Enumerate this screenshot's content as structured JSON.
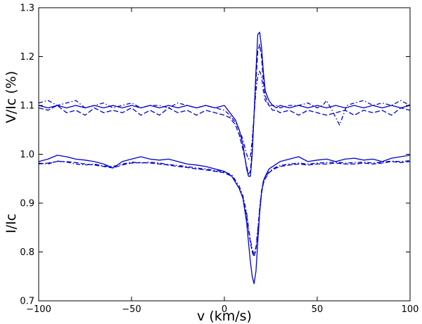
{
  "chart_data": {
    "type": "line",
    "xlabel": "v (km/s)",
    "ylabel_top": "V/Ic (%)",
    "ylabel_bottom": "I/Ic",
    "xlim": [
      -100,
      100
    ],
    "ylim": [
      0.7,
      1.3
    ],
    "x_ticks": [
      -100,
      -50,
      0,
      50,
      100
    ],
    "x_tick_labels": [
      "−100",
      "−50",
      "0",
      "50",
      "100"
    ],
    "y_ticks": [
      0.7,
      0.8,
      0.9,
      1.0,
      1.1,
      1.2,
      1.3
    ],
    "y_tick_labels": [
      "0.7",
      "0.8",
      "0.9",
      "1.0",
      "1.1",
      "1.2",
      "1.3"
    ],
    "grid": false,
    "line_color": "#0000cc",
    "series": [
      {
        "group": "stokes-V",
        "style": "solid",
        "x": [
          -100,
          -95,
          -90,
          -85,
          -80,
          -75,
          -70,
          -65,
          -60,
          -55,
          -50,
          -45,
          -40,
          -35,
          -30,
          -25,
          -20,
          -15,
          -10,
          -5,
          0,
          3,
          6,
          8,
          10,
          12,
          13,
          14,
          15,
          16,
          17,
          18,
          19,
          20,
          21,
          22,
          24,
          26,
          28,
          30,
          35,
          40,
          45,
          50,
          55,
          60,
          65,
          70,
          75,
          80,
          85,
          90,
          95,
          100
        ],
        "y": [
          1.1,
          1.095,
          1.1,
          1.095,
          1.1,
          1.095,
          1.1,
          1.095,
          1.1,
          1.095,
          1.1,
          1.095,
          1.1,
          1.095,
          1.1,
          1.095,
          1.1,
          1.095,
          1.1,
          1.095,
          1.1,
          1.085,
          1.07,
          1.05,
          1.02,
          0.97,
          0.955,
          0.955,
          1.0,
          1.08,
          1.17,
          1.245,
          1.25,
          1.22,
          1.17,
          1.13,
          1.11,
          1.1,
          1.095,
          1.1,
          1.095,
          1.1,
          1.095,
          1.1,
          1.095,
          1.1,
          1.095,
          1.1,
          1.095,
          1.1,
          1.095,
          1.1,
          1.095,
          1.1
        ]
      },
      {
        "group": "stokes-V",
        "style": "dashed",
        "x": [
          -100,
          -95,
          -90,
          -85,
          -80,
          -75,
          -70,
          -65,
          -60,
          -55,
          -50,
          -45,
          -40,
          -35,
          -30,
          -25,
          -20,
          -15,
          -10,
          -5,
          0,
          3,
          6,
          8,
          10,
          12,
          13,
          14,
          15,
          16,
          17,
          18,
          19,
          20,
          21,
          22,
          24,
          26,
          28,
          30,
          35,
          40,
          45,
          50,
          55,
          60,
          65,
          70,
          75,
          80,
          85,
          90,
          95,
          100
        ],
        "y": [
          1.095,
          1.09,
          1.1,
          1.085,
          1.09,
          1.08,
          1.095,
          1.085,
          1.09,
          1.085,
          1.095,
          1.08,
          1.09,
          1.08,
          1.095,
          1.085,
          1.09,
          1.08,
          1.09,
          1.085,
          1.08,
          1.075,
          1.06,
          1.04,
          1.01,
          0.975,
          0.96,
          0.965,
          1.01,
          1.08,
          1.15,
          1.21,
          1.225,
          1.2,
          1.15,
          1.12,
          1.1,
          1.09,
          1.09,
          1.085,
          1.09,
          1.08,
          1.09,
          1.085,
          1.08,
          1.085,
          1.09,
          1.08,
          1.09,
          1.085,
          1.09,
          1.08,
          1.095,
          1.09
        ]
      },
      {
        "group": "stokes-V",
        "style": "dashdot",
        "x": [
          -100,
          -95,
          -90,
          -85,
          -80,
          -75,
          -70,
          -65,
          -60,
          -55,
          -50,
          -45,
          -40,
          -35,
          -30,
          -25,
          -20,
          -15,
          -10,
          -5,
          0,
          3,
          6,
          8,
          10,
          12,
          13,
          14,
          15,
          16,
          17,
          18,
          19,
          20,
          21,
          22,
          24,
          26,
          28,
          30,
          35,
          40,
          45,
          50,
          53,
          55,
          58,
          60,
          62,
          64,
          66,
          70,
          75,
          80,
          85,
          90,
          95,
          100
        ],
        "y": [
          1.105,
          1.11,
          1.1,
          1.105,
          1.11,
          1.095,
          1.1,
          1.105,
          1.095,
          1.1,
          1.105,
          1.095,
          1.1,
          1.1,
          1.095,
          1.105,
          1.1,
          1.095,
          1.1,
          1.095,
          1.09,
          1.08,
          1.065,
          1.05,
          1.03,
          1.0,
          0.99,
          0.995,
          1.03,
          1.08,
          1.13,
          1.16,
          1.17,
          1.16,
          1.13,
          1.11,
          1.1,
          1.1,
          1.1,
          1.095,
          1.1,
          1.1,
          1.105,
          1.095,
          1.1,
          1.11,
          1.09,
          1.075,
          1.06,
          1.08,
          1.1,
          1.105,
          1.11,
          1.1,
          1.105,
          1.1,
          1.11,
          1.1
        ]
      },
      {
        "group": "stokes-I",
        "style": "solid",
        "x": [
          -100,
          -95,
          -90,
          -85,
          -80,
          -75,
          -70,
          -65,
          -60,
          -55,
          -50,
          -45,
          -40,
          -35,
          -30,
          -25,
          -20,
          -15,
          -10,
          -5,
          0,
          4,
          8,
          10,
          12,
          13,
          14,
          15,
          16,
          17,
          18,
          19,
          20,
          21,
          22,
          24,
          26,
          28,
          30,
          35,
          40,
          45,
          50,
          55,
          60,
          65,
          70,
          75,
          80,
          85,
          90,
          95,
          100
        ],
        "y": [
          0.985,
          0.99,
          0.998,
          0.995,
          0.99,
          0.988,
          0.985,
          0.98,
          0.972,
          0.985,
          0.99,
          0.995,
          0.99,
          0.988,
          0.99,
          0.985,
          0.98,
          0.978,
          0.975,
          0.97,
          0.965,
          0.955,
          0.93,
          0.91,
          0.86,
          0.82,
          0.78,
          0.75,
          0.735,
          0.76,
          0.82,
          0.88,
          0.92,
          0.945,
          0.955,
          0.97,
          0.975,
          0.98,
          0.985,
          0.99,
          0.995,
          0.985,
          0.988,
          0.99,
          0.985,
          0.99,
          0.992,
          0.988,
          0.99,
          0.985,
          0.992,
          0.995,
          0.998
        ]
      },
      {
        "group": "stokes-I",
        "style": "dashed",
        "x": [
          -100,
          -95,
          -90,
          -85,
          -80,
          -75,
          -70,
          -65,
          -60,
          -55,
          -50,
          -45,
          -40,
          -35,
          -30,
          -25,
          -20,
          -15,
          -10,
          -5,
          0,
          4,
          8,
          10,
          12,
          13,
          14,
          15,
          16,
          17,
          18,
          19,
          20,
          21,
          22,
          24,
          26,
          28,
          30,
          35,
          40,
          45,
          50,
          55,
          60,
          65,
          70,
          75,
          80,
          85,
          90,
          95,
          100
        ],
        "y": [
          0.98,
          0.982,
          0.985,
          0.985,
          0.983,
          0.98,
          0.978,
          0.975,
          0.972,
          0.978,
          0.982,
          0.983,
          0.982,
          0.98,
          0.978,
          0.975,
          0.973,
          0.97,
          0.968,
          0.965,
          0.962,
          0.955,
          0.93,
          0.91,
          0.875,
          0.845,
          0.82,
          0.8,
          0.79,
          0.805,
          0.84,
          0.885,
          0.92,
          0.94,
          0.95,
          0.962,
          0.968,
          0.972,
          0.975,
          0.978,
          0.98,
          0.978,
          0.98,
          0.98,
          0.982,
          0.98,
          0.98,
          0.982,
          0.98,
          0.982,
          0.985,
          0.983,
          0.985
        ]
      },
      {
        "group": "stokes-I",
        "style": "dashdot",
        "x": [
          -100,
          -95,
          -90,
          -85,
          -80,
          -75,
          -70,
          -65,
          -60,
          -55,
          -50,
          -45,
          -40,
          -35,
          -30,
          -25,
          -20,
          -15,
          -10,
          -5,
          0,
          4,
          8,
          10,
          12,
          13,
          14,
          15,
          16,
          17,
          18,
          19,
          20,
          21,
          22,
          24,
          26,
          28,
          30,
          35,
          40,
          45,
          50,
          55,
          60,
          65,
          70,
          75,
          80,
          85,
          90,
          95,
          100
        ],
        "y": [
          0.982,
          0.98,
          0.986,
          0.984,
          0.98,
          0.978,
          0.98,
          0.976,
          0.975,
          0.98,
          0.984,
          0.982,
          0.984,
          0.982,
          0.979,
          0.977,
          0.975,
          0.972,
          0.97,
          0.967,
          0.964,
          0.958,
          0.935,
          0.915,
          0.88,
          0.85,
          0.825,
          0.805,
          0.795,
          0.81,
          0.845,
          0.89,
          0.925,
          0.944,
          0.953,
          0.964,
          0.97,
          0.974,
          0.977,
          0.98,
          0.982,
          0.98,
          0.982,
          0.983,
          0.984,
          0.982,
          0.983,
          0.984,
          0.982,
          0.984,
          0.986,
          0.985,
          0.987
        ]
      }
    ]
  }
}
